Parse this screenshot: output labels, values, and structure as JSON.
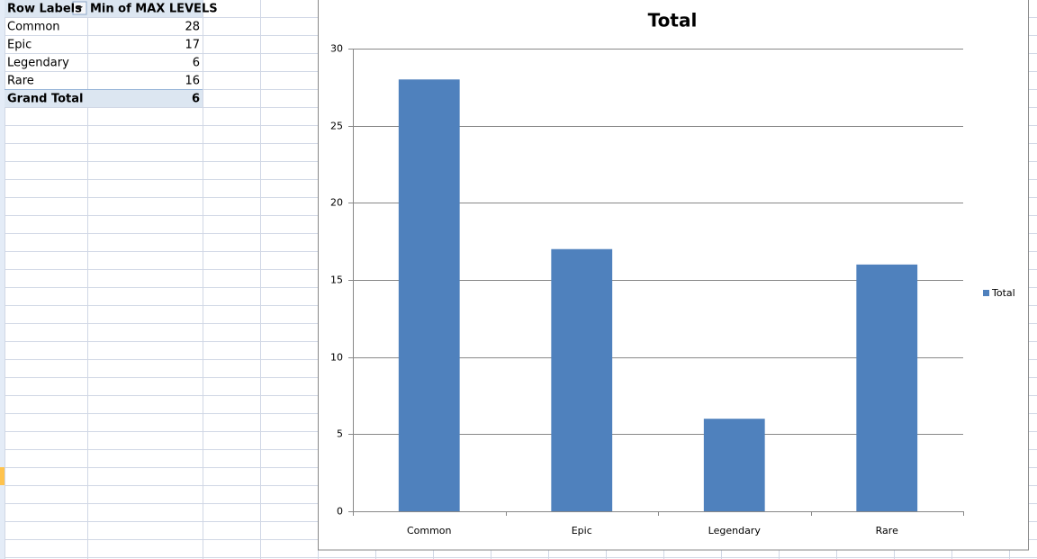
{
  "table": {
    "headers": [
      "Row Labels",
      "Min of MAX LEVELS"
    ],
    "rows": [
      [
        "Common",
        28
      ],
      [
        "Epic",
        17
      ],
      [
        "Legendary",
        6
      ],
      [
        "Rare",
        16
      ]
    ],
    "total": [
      "Grand Total",
      6
    ]
  },
  "chart_data": {
    "type": "bar",
    "title": "Total",
    "categories": [
      "Common",
      "Epic",
      "Legendary",
      "Rare"
    ],
    "series": [
      {
        "name": "Total",
        "color": "#4f81bd",
        "values": [
          28,
          17,
          6,
          16
        ]
      }
    ],
    "ylim": [
      0,
      30
    ],
    "yticks": [
      0,
      5,
      10,
      15,
      20,
      25,
      30
    ],
    "grid": true,
    "legend": "right"
  }
}
